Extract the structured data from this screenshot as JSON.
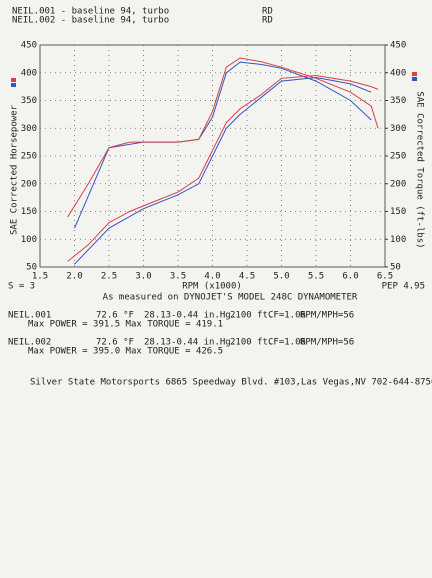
{
  "chart_data": {
    "type": "line",
    "xlabel": "RPM (x1000)",
    "ylabel": "SAE Corrected Horsepower",
    "y2label": "SAE Corrected Torque (ft-lbs)",
    "smoothing": "S = 3",
    "pep": "PEP 4.95",
    "dyno_note": "As measured on DYNOJET'S MODEL 248C DYNAMOMETER",
    "footer": "Silver State Motorsports 6865 Speedway Blvd. #103,Las Vegas,NV 702-644-8756",
    "xlim": [
      1.5,
      6.5
    ],
    "xticks": [
      1.5,
      {
        "value": 2,
        "label": "2.0"
      },
      2.5,
      {
        "value": 3,
        "label": "3.0"
      },
      3.5,
      {
        "value": 4,
        "label": "4.0"
      },
      4.5,
      {
        "value": 5,
        "label": "5.0"
      },
      5.5,
      {
        "value": 6,
        "label": "6.0"
      },
      6.5
    ],
    "ylim": [
      50,
      450
    ],
    "yticks": [
      50,
      100,
      150,
      200,
      250,
      300,
      350,
      400,
      450
    ],
    "y2lim": [
      50,
      450
    ],
    "y2ticks": [
      50,
      100,
      150,
      200,
      250,
      300,
      350,
      400,
      450
    ],
    "grid": true,
    "series": [
      {
        "name": "NEIL.001 - baseline 94, turbo",
        "tag": "RD",
        "color": "#2f55c8",
        "file": "NEIL.001",
        "temp": "72.6 °F",
        "baro": "28.13-0.44 in.Hg.",
        "alt": "2100 ft.",
        "cf": "CF=1.06",
        "ratio": "RPM/MPH=56",
        "max_line": "Max POWER = 391.5  Max TORQUE = 419.1",
        "x": [
          2.0,
          2.5,
          3.0,
          3.5,
          3.8,
          4.0,
          4.2,
          4.4,
          4.7,
          5.0,
          5.5,
          6.0,
          6.3
        ],
        "hp": [
          55,
          120,
          155,
          180,
          200,
          250,
          300,
          325,
          355,
          385,
          391.5,
          380,
          365
        ],
        "torque": [
          120,
          265,
          275,
          275,
          280,
          320,
          400,
          419.1,
          415,
          408,
          385,
          350,
          315
        ]
      },
      {
        "name": "NEIL.002 - baseline 94, turbo",
        "tag": "RD",
        "color": "#d8413f",
        "file": "NEIL.002",
        "temp": "72.6 °F",
        "baro": "28.13-0.44 in.Hg.",
        "alt": "2100 ft.",
        "cf": "CF=1.06",
        "ratio": "RPM/MPH=56",
        "max_line": "Max POWER = 395.0  Max TORQUE = 426.5",
        "x": [
          1.9,
          2.2,
          2.5,
          2.8,
          3.0,
          3.5,
          3.8,
          4.0,
          4.2,
          4.4,
          4.7,
          5.0,
          5.5,
          6.0,
          6.3,
          6.4
        ],
        "hp": [
          60,
          90,
          130,
          150,
          160,
          185,
          210,
          260,
          310,
          335,
          360,
          390,
          395,
          385,
          375,
          370
        ],
        "torque": [
          140,
          200,
          265,
          275,
          275,
          275,
          280,
          330,
          410,
          426.5,
          420,
          410,
          390,
          365,
          340,
          300
        ]
      }
    ]
  }
}
